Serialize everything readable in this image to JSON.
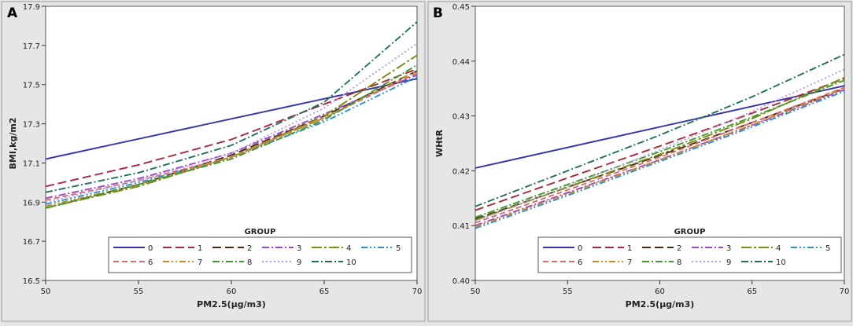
{
  "chart_data": [
    {
      "type": "line",
      "panel_label": "A",
      "title": "",
      "xlabel": "PM2.5(μg/m3)",
      "ylabel": "BMI,kg/m2",
      "xlim": [
        50,
        70
      ],
      "ylim": [
        16.5,
        17.9
      ],
      "x_ticks": [
        "50",
        "55",
        "60",
        "65",
        "70"
      ],
      "y_ticks": [
        "16.5",
        "16.7",
        "16.9",
        "17.1",
        "17.3",
        "17.5",
        "17.7",
        "17.9"
      ],
      "legend_title": "GROUP",
      "legend_position": "bottom-right",
      "series": [
        {
          "name": "0",
          "color": "#3333aa",
          "dash": "solid",
          "x": [
            50,
            70
          ],
          "y": [
            17.12,
            17.53
          ]
        },
        {
          "name": "1",
          "color": "#a82a3a",
          "dash": "longdash",
          "x": [
            50,
            55,
            60,
            65,
            70
          ],
          "y": [
            16.98,
            17.09,
            17.22,
            17.4,
            17.58
          ]
        },
        {
          "name": "2",
          "color": "#4a2a12",
          "dash": "longdash",
          "x": [
            50,
            55,
            60,
            65,
            70
          ],
          "y": [
            16.87,
            16.99,
            17.14,
            17.34,
            17.57
          ]
        },
        {
          "name": "3",
          "color": "#9a48c8",
          "dash": "dashdot",
          "x": [
            50,
            55,
            60,
            65,
            70
          ],
          "y": [
            16.92,
            17.02,
            17.15,
            17.35,
            17.55
          ]
        },
        {
          "name": "4",
          "color": "#7f8a18",
          "dash": "longdashdot",
          "x": [
            50,
            55,
            60,
            65,
            70
          ],
          "y": [
            16.87,
            16.98,
            17.13,
            17.34,
            17.65
          ]
        },
        {
          "name": "5",
          "color": "#2b8fd4",
          "dash": "dashdotdot",
          "x": [
            50,
            55,
            60,
            65,
            70
          ],
          "y": [
            16.89,
            17.0,
            17.13,
            17.31,
            17.54
          ]
        },
        {
          "name": "6",
          "color": "#d4706e",
          "dash": "dash",
          "x": [
            50,
            55,
            60,
            65,
            70
          ],
          "y": [
            16.91,
            17.01,
            17.13,
            17.33,
            17.56
          ]
        },
        {
          "name": "7",
          "color": "#c98a2a",
          "dash": "dashdotdot",
          "x": [
            50,
            55,
            60,
            65,
            70
          ],
          "y": [
            16.88,
            16.99,
            17.13,
            17.33,
            17.57
          ]
        },
        {
          "name": "8",
          "color": "#3f9a2e",
          "dash": "dashdot",
          "x": [
            50,
            55,
            60,
            65,
            70
          ],
          "y": [
            16.87,
            16.99,
            17.12,
            17.32,
            17.6
          ]
        },
        {
          "name": "9",
          "color": "#b89ae8",
          "dash": "dot",
          "x": [
            50,
            55,
            60,
            65,
            70
          ],
          "y": [
            16.9,
            17.01,
            17.15,
            17.38,
            17.71
          ]
        },
        {
          "name": "10",
          "color": "#1f6e5e",
          "dash": "dashdot",
          "x": [
            50,
            55,
            60,
            65,
            70
          ],
          "y": [
            16.95,
            17.05,
            17.19,
            17.41,
            17.82
          ]
        }
      ]
    },
    {
      "type": "line",
      "panel_label": "B",
      "title": "",
      "xlabel": "PM2.5(μg/m3)",
      "ylabel": "WHtR",
      "xlim": [
        50,
        70
      ],
      "ylim": [
        0.4,
        0.45
      ],
      "x_ticks": [
        "50",
        "55",
        "60",
        "65",
        "70"
      ],
      "y_ticks": [
        "0.40",
        "0.41",
        "0.42",
        "0.43",
        "0.44",
        "0.45"
      ],
      "legend_title": "GROUP",
      "legend_position": "bottom-right",
      "series": [
        {
          "name": "0",
          "color": "#3333aa",
          "dash": "solid",
          "x": [
            50,
            70
          ],
          "y": [
            0.4205,
            0.4355
          ]
        },
        {
          "name": "1",
          "color": "#a82a3a",
          "dash": "longdash",
          "x": [
            50,
            55,
            60,
            65,
            70
          ],
          "y": [
            0.4128,
            0.4187,
            0.4245,
            0.4305,
            0.4368
          ]
        },
        {
          "name": "2",
          "color": "#4a2a12",
          "dash": "longdash",
          "x": [
            50,
            55,
            60,
            65,
            70
          ],
          "y": [
            0.4112,
            0.417,
            0.4228,
            0.4288,
            0.435
          ]
        },
        {
          "name": "3",
          "color": "#9a48c8",
          "dash": "dashdot",
          "x": [
            50,
            55,
            60,
            65,
            70
          ],
          "y": [
            0.41,
            0.416,
            0.422,
            0.4283,
            0.4348
          ]
        },
        {
          "name": "4",
          "color": "#7f8a18",
          "dash": "longdashdot",
          "x": [
            50,
            55,
            60,
            65,
            70
          ],
          "y": [
            0.411,
            0.417,
            0.423,
            0.4295,
            0.437
          ]
        },
        {
          "name": "5",
          "color": "#2b8fd4",
          "dash": "dashdotdot",
          "x": [
            50,
            55,
            60,
            65,
            70
          ],
          "y": [
            0.4095,
            0.4155,
            0.4217,
            0.428,
            0.4345
          ]
        },
        {
          "name": "6",
          "color": "#d4706e",
          "dash": "dash",
          "x": [
            50,
            55,
            60,
            65,
            70
          ],
          "y": [
            0.4105,
            0.4165,
            0.4225,
            0.4288,
            0.4352
          ]
        },
        {
          "name": "7",
          "color": "#c98a2a",
          "dash": "dashdotdot",
          "x": [
            50,
            55,
            60,
            65,
            70
          ],
          "y": [
            0.4098,
            0.4158,
            0.422,
            0.4284,
            0.435
          ]
        },
        {
          "name": "8",
          "color": "#3f9a2e",
          "dash": "dashdot",
          "x": [
            50,
            55,
            60,
            65,
            70
          ],
          "y": [
            0.4115,
            0.4175,
            0.4235,
            0.4298,
            0.4365
          ]
        },
        {
          "name": "9",
          "color": "#b89ae8",
          "dash": "dot",
          "x": [
            50,
            55,
            60,
            65,
            70
          ],
          "y": [
            0.4108,
            0.4172,
            0.4238,
            0.4308,
            0.4385
          ]
        },
        {
          "name": "10",
          "color": "#1f6e5e",
          "dash": "dashdot",
          "x": [
            50,
            55,
            60,
            65,
            70
          ],
          "y": [
            0.4135,
            0.42,
            0.4265,
            0.4335,
            0.4412
          ]
        }
      ]
    }
  ]
}
